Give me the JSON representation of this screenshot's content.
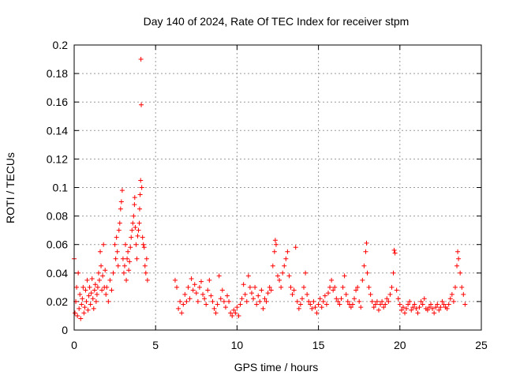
{
  "chart_data": {
    "type": "scatter",
    "title": "Day 140 of 2024, Rate Of TEC Index for receiver stpm",
    "xlabel": "GPS time / hours",
    "ylabel": "ROTI / TECUs",
    "xlim": [
      0,
      25
    ],
    "ylim": [
      0,
      0.2
    ],
    "x_ticks": [
      0,
      5,
      10,
      15,
      20,
      25
    ],
    "y_ticks": [
      0,
      0.02,
      0.04,
      0.06,
      0.08,
      0.1,
      0.12,
      0.14,
      0.16,
      0.18,
      0.2
    ],
    "grid": true,
    "marker": "plus",
    "color": "#ff0000",
    "series": [
      {
        "name": "ROTI",
        "points": [
          [
            0.0,
            0.05
          ],
          [
            0.05,
            0.012
          ],
          [
            0.1,
            0.02
          ],
          [
            0.15,
            0.03
          ],
          [
            0.2,
            0.01
          ],
          [
            0.25,
            0.04
          ],
          [
            0.3,
            0.015
          ],
          [
            0.35,
            0.025
          ],
          [
            0.4,
            0.008
          ],
          [
            0.45,
            0.018
          ],
          [
            0.5,
            0.022
          ],
          [
            0.55,
            0.03
          ],
          [
            0.6,
            0.012
          ],
          [
            0.65,
            0.016
          ],
          [
            0.7,
            0.028
          ],
          [
            0.75,
            0.02
          ],
          [
            0.8,
            0.035
          ],
          [
            0.85,
            0.014
          ],
          [
            0.9,
            0.024
          ],
          [
            0.95,
            0.03
          ],
          [
            1.0,
            0.018
          ],
          [
            1.05,
            0.026
          ],
          [
            1.1,
            0.036
          ],
          [
            1.15,
            0.022
          ],
          [
            1.2,
            0.015
          ],
          [
            1.25,
            0.028
          ],
          [
            1.3,
            0.032
          ],
          [
            1.35,
            0.02
          ],
          [
            1.4,
            0.025
          ],
          [
            1.45,
            0.03
          ],
          [
            1.5,
            0.04
          ],
          [
            1.55,
            0.035
          ],
          [
            1.6,
            0.055
          ],
          [
            1.65,
            0.045
          ],
          [
            1.7,
            0.028
          ],
          [
            1.75,
            0.038
          ],
          [
            1.8,
            0.06
          ],
          [
            1.85,
            0.03
          ],
          [
            1.9,
            0.042
          ],
          [
            1.95,
            0.025
          ],
          [
            2.0,
            0.03
          ],
          [
            2.1,
            0.02
          ],
          [
            2.2,
            0.035
          ],
          [
            2.3,
            0.028
          ],
          [
            2.4,
            0.04
          ],
          [
            2.5,
            0.06
          ],
          [
            2.55,
            0.05
          ],
          [
            2.6,
            0.065
          ],
          [
            2.65,
            0.055
          ],
          [
            2.7,
            0.045
          ],
          [
            2.75,
            0.07
          ],
          [
            2.8,
            0.075
          ],
          [
            2.85,
            0.085
          ],
          [
            2.9,
            0.09
          ],
          [
            2.95,
            0.098
          ],
          [
            3.0,
            0.05
          ],
          [
            3.05,
            0.04
          ],
          [
            3.1,
            0.045
          ],
          [
            3.15,
            0.06
          ],
          [
            3.2,
            0.035
          ],
          [
            3.25,
            0.05
          ],
          [
            3.3,
            0.055
          ],
          [
            3.35,
            0.042
          ],
          [
            3.4,
            0.048
          ],
          [
            3.45,
            0.058
          ],
          [
            3.5,
            0.065
          ],
          [
            3.55,
            0.07
          ],
          [
            3.6,
            0.075
          ],
          [
            3.65,
            0.08
          ],
          [
            3.7,
            0.088
          ],
          [
            3.72,
            0.093
          ],
          [
            3.75,
            0.072
          ],
          [
            3.8,
            0.06
          ],
          [
            3.85,
            0.05
          ],
          [
            3.9,
            0.066
          ],
          [
            3.95,
            0.07
          ],
          [
            4.0,
            0.075
          ],
          [
            4.02,
            0.085
          ],
          [
            4.05,
            0.095
          ],
          [
            4.08,
            0.105
          ],
          [
            4.1,
            0.19
          ],
          [
            4.12,
            0.158
          ],
          [
            4.15,
            0.1
          ],
          [
            4.2,
            0.065
          ],
          [
            4.25,
            0.06
          ],
          [
            4.3,
            0.058
          ],
          [
            4.35,
            0.045
          ],
          [
            4.4,
            0.04
          ],
          [
            4.45,
            0.05
          ],
          [
            4.5,
            0.035
          ],
          [
            6.2,
            0.035
          ],
          [
            6.3,
            0.03
          ],
          [
            6.4,
            0.015
          ],
          [
            6.5,
            0.02
          ],
          [
            6.6,
            0.012
          ],
          [
            6.7,
            0.018
          ],
          [
            6.8,
            0.025
          ],
          [
            6.9,
            0.02
          ],
          [
            7.0,
            0.03
          ],
          [
            7.1,
            0.022
          ],
          [
            7.2,
            0.036
          ],
          [
            7.3,
            0.028
          ],
          [
            7.4,
            0.032
          ],
          [
            7.5,
            0.026
          ],
          [
            7.6,
            0.02
          ],
          [
            7.7,
            0.03
          ],
          [
            7.8,
            0.034
          ],
          [
            7.9,
            0.025
          ],
          [
            8.0,
            0.022
          ],
          [
            8.1,
            0.018
          ],
          [
            8.2,
            0.028
          ],
          [
            8.3,
            0.035
          ],
          [
            8.4,
            0.024
          ],
          [
            8.5,
            0.02
          ],
          [
            8.6,
            0.015
          ],
          [
            8.7,
            0.012
          ],
          [
            8.8,
            0.018
          ],
          [
            8.9,
            0.038
          ],
          [
            9.0,
            0.022
          ],
          [
            9.1,
            0.028
          ],
          [
            9.2,
            0.02
          ],
          [
            9.3,
            0.016
          ],
          [
            9.4,
            0.024
          ],
          [
            9.5,
            0.02
          ],
          [
            9.6,
            0.012
          ],
          [
            9.7,
            0.01
          ],
          [
            9.8,
            0.014
          ],
          [
            9.9,
            0.012
          ],
          [
            10.0,
            0.016
          ],
          [
            10.1,
            0.01
          ],
          [
            10.2,
            0.018
          ],
          [
            10.3,
            0.022
          ],
          [
            10.4,
            0.032
          ],
          [
            10.5,
            0.025
          ],
          [
            10.6,
            0.02
          ],
          [
            10.7,
            0.038
          ],
          [
            10.8,
            0.03
          ],
          [
            10.9,
            0.026
          ],
          [
            11.0,
            0.022
          ],
          [
            11.1,
            0.03
          ],
          [
            11.2,
            0.018
          ],
          [
            11.3,
            0.024
          ],
          [
            11.4,
            0.02
          ],
          [
            11.5,
            0.028
          ],
          [
            11.6,
            0.015
          ],
          [
            11.7,
            0.022
          ],
          [
            11.8,
            0.02
          ],
          [
            11.9,
            0.026
          ],
          [
            12.0,
            0.03
          ],
          [
            12.1,
            0.028
          ],
          [
            12.2,
            0.045
          ],
          [
            12.3,
            0.055
          ],
          [
            12.35,
            0.063
          ],
          [
            12.4,
            0.06
          ],
          [
            12.5,
            0.038
          ],
          [
            12.6,
            0.035
          ],
          [
            12.7,
            0.03
          ],
          [
            12.8,
            0.04
          ],
          [
            12.9,
            0.045
          ],
          [
            13.0,
            0.05
          ],
          [
            13.1,
            0.055
          ],
          [
            13.2,
            0.038
          ],
          [
            13.3,
            0.03
          ],
          [
            13.4,
            0.025
          ],
          [
            13.5,
            0.028
          ],
          [
            13.6,
            0.058
          ],
          [
            13.7,
            0.02
          ],
          [
            13.8,
            0.015
          ],
          [
            13.9,
            0.018
          ],
          [
            14.0,
            0.022
          ],
          [
            14.1,
            0.03
          ],
          [
            14.2,
            0.04
          ],
          [
            14.3,
            0.025
          ],
          [
            14.4,
            0.02
          ],
          [
            14.5,
            0.018
          ],
          [
            14.6,
            0.015
          ],
          [
            14.7,
            0.02
          ],
          [
            14.8,
            0.016
          ],
          [
            14.9,
            0.012
          ],
          [
            15.0,
            0.018
          ],
          [
            15.1,
            0.022
          ],
          [
            15.2,
            0.016
          ],
          [
            15.3,
            0.02
          ],
          [
            15.4,
            0.024
          ],
          [
            15.5,
            0.018
          ],
          [
            15.6,
            0.026
          ],
          [
            15.7,
            0.03
          ],
          [
            15.8,
            0.035
          ],
          [
            15.9,
            0.028
          ],
          [
            16.0,
            0.03
          ],
          [
            16.1,
            0.022
          ],
          [
            16.2,
            0.02
          ],
          [
            16.3,
            0.018
          ],
          [
            16.4,
            0.022
          ],
          [
            16.5,
            0.03
          ],
          [
            16.6,
            0.038
          ],
          [
            16.7,
            0.025
          ],
          [
            16.8,
            0.02
          ],
          [
            16.9,
            0.018
          ],
          [
            17.0,
            0.016
          ],
          [
            17.1,
            0.018
          ],
          [
            17.2,
            0.022
          ],
          [
            17.3,
            0.028
          ],
          [
            17.4,
            0.03
          ],
          [
            17.5,
            0.02
          ],
          [
            17.6,
            0.016
          ],
          [
            17.7,
            0.035
          ],
          [
            17.8,
            0.045
          ],
          [
            17.9,
            0.055
          ],
          [
            17.95,
            0.061
          ],
          [
            18.0,
            0.04
          ],
          [
            18.1,
            0.03
          ],
          [
            18.2,
            0.025
          ],
          [
            18.3,
            0.02
          ],
          [
            18.4,
            0.016
          ],
          [
            18.5,
            0.018
          ],
          [
            18.6,
            0.02
          ],
          [
            18.7,
            0.014
          ],
          [
            18.8,
            0.018
          ],
          [
            18.9,
            0.02
          ],
          [
            19.0,
            0.016
          ],
          [
            19.1,
            0.018
          ],
          [
            19.2,
            0.022
          ],
          [
            19.3,
            0.02
          ],
          [
            19.4,
            0.025
          ],
          [
            19.5,
            0.03
          ],
          [
            19.6,
            0.04
          ],
          [
            19.65,
            0.056
          ],
          [
            19.7,
            0.054
          ],
          [
            19.8,
            0.028
          ],
          [
            19.9,
            0.022
          ],
          [
            20.0,
            0.018
          ],
          [
            20.1,
            0.014
          ],
          [
            20.2,
            0.016
          ],
          [
            20.3,
            0.012
          ],
          [
            20.4,
            0.015
          ],
          [
            20.5,
            0.018
          ],
          [
            20.6,
            0.02
          ],
          [
            20.7,
            0.014
          ],
          [
            20.8,
            0.016
          ],
          [
            20.9,
            0.018
          ],
          [
            21.0,
            0.015
          ],
          [
            21.1,
            0.012
          ],
          [
            21.2,
            0.016
          ],
          [
            21.3,
            0.02
          ],
          [
            21.4,
            0.018
          ],
          [
            21.5,
            0.022
          ],
          [
            21.6,
            0.015
          ],
          [
            21.7,
            0.014
          ],
          [
            21.8,
            0.016
          ],
          [
            21.9,
            0.018
          ],
          [
            22.0,
            0.015
          ],
          [
            22.1,
            0.012
          ],
          [
            22.2,
            0.016
          ],
          [
            22.3,
            0.018
          ],
          [
            22.4,
            0.014
          ],
          [
            22.5,
            0.016
          ],
          [
            22.6,
            0.02
          ],
          [
            22.7,
            0.018
          ],
          [
            22.8,
            0.016
          ],
          [
            22.9,
            0.015
          ],
          [
            23.0,
            0.018
          ],
          [
            23.1,
            0.022
          ],
          [
            23.2,
            0.025
          ],
          [
            23.3,
            0.02
          ],
          [
            23.4,
            0.03
          ],
          [
            23.5,
            0.045
          ],
          [
            23.55,
            0.055
          ],
          [
            23.6,
            0.05
          ],
          [
            23.7,
            0.04
          ],
          [
            23.8,
            0.03
          ],
          [
            23.9,
            0.025
          ],
          [
            24.0,
            0.018
          ]
        ]
      }
    ]
  }
}
